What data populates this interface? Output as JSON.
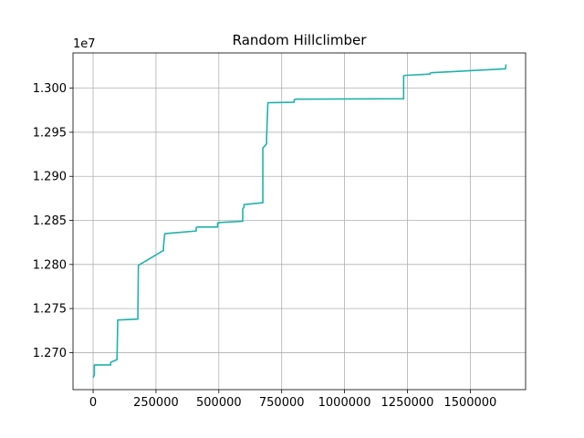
{
  "chart_data": {
    "type": "line",
    "title": "Random Hillclimber",
    "xlabel": "",
    "ylabel": "",
    "y_offset_label": "1e7",
    "xlim": [
      -80000,
      1720000
    ],
    "ylim": [
      12658000,
      13040000
    ],
    "xticks": [
      0,
      250000,
      500000,
      750000,
      1000000,
      1250000,
      1500000
    ],
    "xtick_labels": [
      "0",
      "250000",
      "500000",
      "750000",
      "1000000",
      "1250000",
      "1500000"
    ],
    "yticks": [
      12700000,
      12750000,
      12800000,
      12850000,
      12900000,
      12950000,
      13000000
    ],
    "ytick_labels": [
      "1.270",
      "1.275",
      "1.280",
      "1.285",
      "1.290",
      "1.295",
      "1.300"
    ],
    "grid": true,
    "line_color": "#20b2aa",
    "series": [
      {
        "x": [
          0,
          5000,
          5000,
          70000,
          70000,
          95000,
          95000,
          98000,
          98000,
          178000,
          178000,
          180000,
          180000,
          280000,
          280000,
          285000,
          285000,
          410000,
          410000,
          415000,
          415000,
          495000,
          495000,
          500000,
          500000,
          595000,
          595000,
          600000,
          600000,
          675000,
          675000,
          690000,
          690000,
          695000,
          695000,
          800000,
          800000,
          805000,
          805000,
          1235000,
          1235000,
          1240000,
          1240000,
          1340000,
          1340000,
          1345000,
          1345000,
          1640000,
          1640000,
          1642000
        ],
        "y": [
          12671500,
          12675000,
          12686000,
          12686000,
          12689000,
          12692000,
          12693000,
          12736000,
          12737000,
          12738000,
          12745000,
          12798000,
          12799000,
          12816000,
          12821000,
          12835000,
          12835000,
          12838000,
          12842000,
          12842500,
          12842500,
          12842500,
          12847000,
          12847000,
          12847500,
          12849000,
          12863000,
          12865000,
          12868000,
          12870000,
          12932000,
          12937000,
          12944000,
          12983000,
          12983500,
          12984000,
          12987000,
          12987500,
          12987500,
          12988000,
          13014000,
          13014500,
          13014500,
          13016000,
          13017000,
          13017500,
          13017500,
          13022000,
          13022500,
          13027000
        ]
      }
    ]
  }
}
